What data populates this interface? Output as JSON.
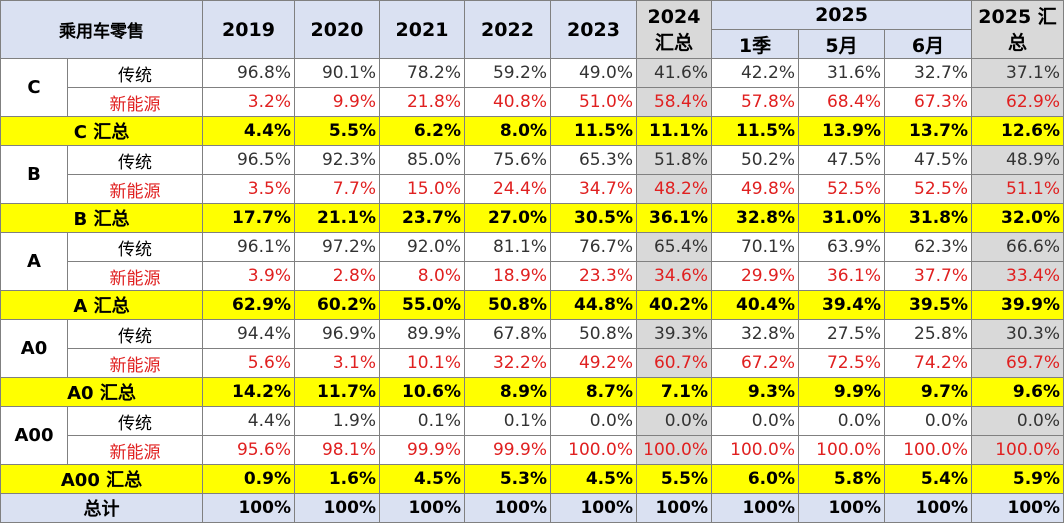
{
  "chart_data": {
    "type": "table",
    "corner_label": "乘用车零售",
    "columns": [
      {
        "key": "2019",
        "line1": "2019",
        "line2": ""
      },
      {
        "key": "2020",
        "line1": "2020",
        "line2": ""
      },
      {
        "key": "2021",
        "line1": "2021",
        "line2": ""
      },
      {
        "key": "2022",
        "line1": "2022",
        "line2": ""
      },
      {
        "key": "2023",
        "line1": "2023",
        "line2": ""
      },
      {
        "key": "2024",
        "line1": "2024",
        "line2": "汇总"
      }
    ],
    "group_2025": {
      "label": "2025",
      "sub": [
        "1季",
        "5月",
        "6月"
      ]
    },
    "col_2025_total": {
      "line1": "2025 汇",
      "line2": "总"
    },
    "segments": [
      {
        "name": "C",
        "rows": [
          {
            "kind": "传统",
            "values": [
              "96.8%",
              "90.1%",
              "78.2%",
              "59.2%",
              "49.0%",
              "41.6%",
              "42.2%",
              "31.6%",
              "32.7%",
              "37.1%"
            ]
          },
          {
            "kind": "新能源",
            "values": [
              "3.2%",
              "9.9%",
              "21.8%",
              "40.8%",
              "51.0%",
              "58.4%",
              "57.8%",
              "68.4%",
              "67.3%",
              "62.9%"
            ]
          }
        ],
        "subtotal_label": "C 汇总",
        "subtotal": [
          "4.4%",
          "5.5%",
          "6.2%",
          "8.0%",
          "11.5%",
          "11.1%",
          "11.5%",
          "13.9%",
          "13.7%",
          "12.6%"
        ]
      },
      {
        "name": "B",
        "rows": [
          {
            "kind": "传统",
            "values": [
              "96.5%",
              "92.3%",
              "85.0%",
              "75.6%",
              "65.3%",
              "51.8%",
              "50.2%",
              "47.5%",
              "47.5%",
              "48.9%"
            ]
          },
          {
            "kind": "新能源",
            "values": [
              "3.5%",
              "7.7%",
              "15.0%",
              "24.4%",
              "34.7%",
              "48.2%",
              "49.8%",
              "52.5%",
              "52.5%",
              "51.1%"
            ]
          }
        ],
        "subtotal_label": "B 汇总",
        "subtotal": [
          "17.7%",
          "21.1%",
          "23.7%",
          "27.0%",
          "30.5%",
          "36.1%",
          "32.8%",
          "31.0%",
          "31.8%",
          "32.0%"
        ]
      },
      {
        "name": "A",
        "rows": [
          {
            "kind": "传统",
            "values": [
              "96.1%",
              "97.2%",
              "92.0%",
              "81.1%",
              "76.7%",
              "65.4%",
              "70.1%",
              "63.9%",
              "62.3%",
              "66.6%"
            ]
          },
          {
            "kind": "新能源",
            "values": [
              "3.9%",
              "2.8%",
              "8.0%",
              "18.9%",
              "23.3%",
              "34.6%",
              "29.9%",
              "36.1%",
              "37.7%",
              "33.4%"
            ]
          }
        ],
        "subtotal_label": "A 汇总",
        "subtotal": [
          "62.9%",
          "60.2%",
          "55.0%",
          "50.8%",
          "44.8%",
          "40.2%",
          "40.4%",
          "39.4%",
          "39.5%",
          "39.9%"
        ]
      },
      {
        "name": "A0",
        "rows": [
          {
            "kind": "传统",
            "values": [
              "94.4%",
              "96.9%",
              "89.9%",
              "67.8%",
              "50.8%",
              "39.3%",
              "32.8%",
              "27.5%",
              "25.8%",
              "30.3%"
            ]
          },
          {
            "kind": "新能源",
            "values": [
              "5.6%",
              "3.1%",
              "10.1%",
              "32.2%",
              "49.2%",
              "60.7%",
              "67.2%",
              "72.5%",
              "74.2%",
              "69.7%"
            ]
          }
        ],
        "subtotal_label": "A0 汇总",
        "subtotal": [
          "14.2%",
          "11.7%",
          "10.6%",
          "8.9%",
          "8.7%",
          "7.1%",
          "9.3%",
          "9.9%",
          "9.7%",
          "9.6%"
        ]
      },
      {
        "name": "A00",
        "rows": [
          {
            "kind": "传统",
            "values": [
              "4.4%",
              "1.9%",
              "0.1%",
              "0.1%",
              "0.0%",
              "0.0%",
              "0.0%",
              "0.0%",
              "0.0%",
              "0.0%"
            ]
          },
          {
            "kind": "新能源",
            "values": [
              "95.6%",
              "98.1%",
              "99.9%",
              "99.9%",
              "100.0%",
              "100.0%",
              "100.0%",
              "100.0%",
              "100.0%",
              "100.0%"
            ]
          }
        ],
        "subtotal_label": "A00 汇总",
        "subtotal": [
          "0.9%",
          "1.6%",
          "4.5%",
          "5.3%",
          "4.5%",
          "5.5%",
          "6.0%",
          "5.8%",
          "5.4%",
          "5.9%"
        ]
      }
    ],
    "grand_total": {
      "label": "总计",
      "values": [
        "100%",
        "100%",
        "100%",
        "100%",
        "100%",
        "100%",
        "100%",
        "100%",
        "100%",
        "100%"
      ]
    },
    "colors": {
      "header_bg": "#dae1f2",
      "gray_col": "#d9d9d9",
      "subtotal_bg": "#ffff00",
      "nev_text": "#e02020"
    }
  }
}
